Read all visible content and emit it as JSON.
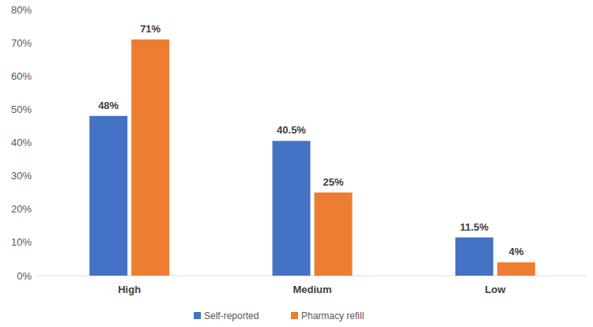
{
  "chart_data": {
    "type": "bar",
    "categories": [
      "High",
      "Medium",
      "Low"
    ],
    "series": [
      {
        "name": "Self-reported",
        "color": "#4472c4",
        "values": [
          48,
          40.5,
          11.5
        ],
        "value_labels": [
          "48%",
          "40.5%",
          "11.5%"
        ]
      },
      {
        "name": "Pharmacy refill",
        "color": "#ed7d31",
        "values": [
          71,
          25,
          4
        ],
        "value_labels": [
          "71%",
          "25%",
          "4%"
        ]
      }
    ],
    "ylim": [
      0,
      80
    ],
    "yticks": [
      {
        "value": 0,
        "label": "0%"
      },
      {
        "value": 10,
        "label": "10%"
      },
      {
        "value": 20,
        "label": "20%"
      },
      {
        "value": 30,
        "label": "30%"
      },
      {
        "value": 40,
        "label": "40%"
      },
      {
        "value": 50,
        "label": "50%"
      },
      {
        "value": 60,
        "label": "60%"
      },
      {
        "value": 70,
        "label": "70%"
      },
      {
        "value": 80,
        "label": "80%"
      }
    ],
    "grid": false,
    "data_labels": true,
    "legend": "bottom"
  }
}
